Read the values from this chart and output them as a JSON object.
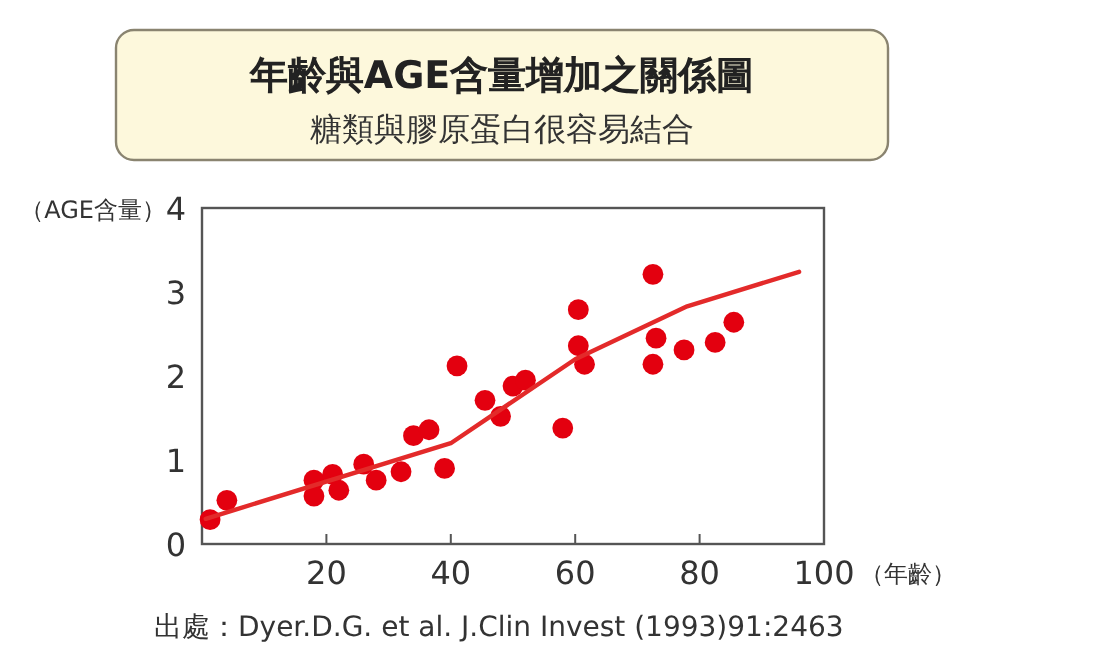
{
  "chart_data": {
    "type": "scatter",
    "title": "年齡與AGE含量增加之關係圖",
    "subtitle": "糖類與膠原蛋白很容易結合",
    "ylabel": "（AGE含量）",
    "xlabel": "（年齡）",
    "annotations": [
      "出處：Dyer.D.G. et al. J.Clin Invest (1993)91:2463"
    ],
    "xlim": [
      0,
      100
    ],
    "ylim": [
      0,
      4
    ],
    "xticks": [
      20,
      40,
      60,
      80,
      100
    ],
    "yticks": [
      0,
      1,
      2,
      3,
      4
    ],
    "grid": false,
    "marker": "circle",
    "series": [
      {
        "color": "#e3000f",
        "x": [
          1.3,
          4,
          18,
          18,
          21,
          22,
          26,
          28,
          32,
          34,
          36.5,
          39,
          41,
          45.5,
          48,
          50,
          52,
          58,
          60.5,
          60.5,
          61.5,
          72.5,
          73,
          72.5,
          77.5,
          82.5,
          85.5
        ],
        "values": [
          0.29,
          0.52,
          0.76,
          0.57,
          0.83,
          0.64,
          0.95,
          0.76,
          0.86,
          1.29,
          1.36,
          0.9,
          2.12,
          1.71,
          1.52,
          1.88,
          1.95,
          1.38,
          2.79,
          2.36,
          2.14,
          3.21,
          2.45,
          2.14,
          2.31,
          2.4,
          2.64
        ]
      },
      {
        "type": "line",
        "color": "#e32a2a",
        "marker": "none",
        "line_style": "solid",
        "x": [
          0.6,
          40,
          60,
          78,
          96
        ],
        "values": [
          0.3,
          1.2,
          2.2,
          2.83,
          3.24
        ]
      }
    ]
  }
}
